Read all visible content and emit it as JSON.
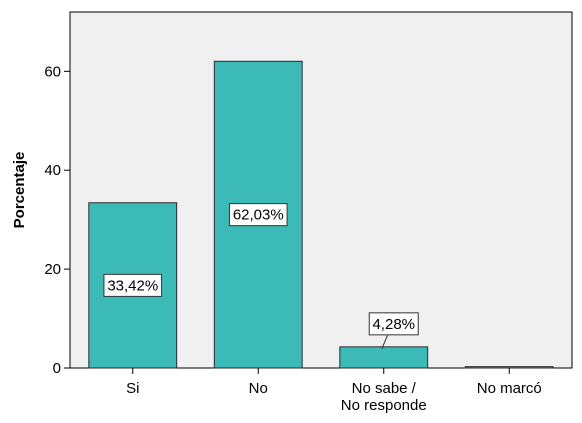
{
  "chart_data": {
    "type": "bar",
    "title": "",
    "xlabel": "",
    "ylabel": "Porcentaje",
    "categories": [
      [
        "Si"
      ],
      [
        "No"
      ],
      [
        "No sabe /",
        "No responde"
      ],
      [
        "No marcó"
      ]
    ],
    "values": [
      33.42,
      62.03,
      4.28,
      0.27
    ],
    "data_labels": [
      "33,42%",
      "62,03%",
      "4,28%",
      ""
    ],
    "ylim": [
      0,
      72
    ],
    "yticks": [
      0,
      20,
      40,
      60
    ],
    "grid": false,
    "legend": "none",
    "colors": {
      "plot_background": "#f0f0f0",
      "bar_fill": "#3cbab8",
      "bar_stroke": "#2b2b2b",
      "axis": "#000000",
      "label_box": "#ffffff"
    }
  }
}
